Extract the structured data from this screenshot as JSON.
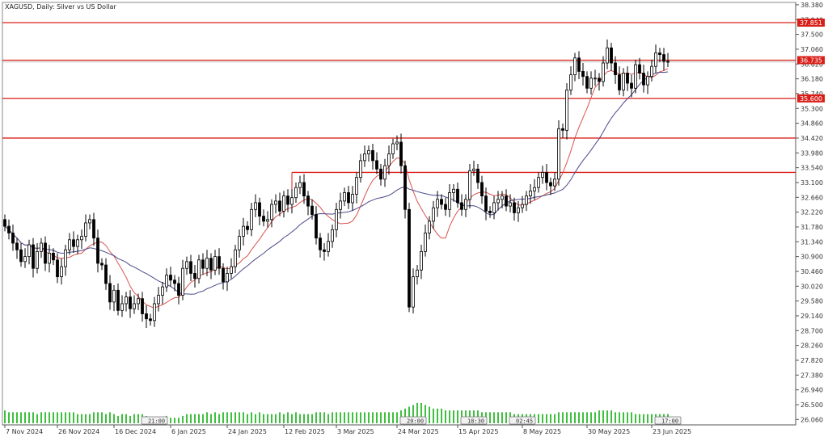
{
  "title": "XAGUSD, Daily:  Silver vs US Dollar",
  "colors": {
    "level": "#d91e18",
    "ma_fast": "#d9534f",
    "ma_slow": "#4a4a8a",
    "volume": "#3fbf3f",
    "candle": "#000000",
    "grid": "#cfcfcf"
  },
  "chart_data": {
    "type": "candlestick",
    "ylim": [
      25.9,
      38.45
    ],
    "y_ticks": [
      "38.380",
      "37.940",
      "37.500",
      "37.060",
      "36.620",
      "36.180",
      "35.740",
      "35.300",
      "34.860",
      "34.420",
      "33.980",
      "33.540",
      "33.100",
      "32.660",
      "32.220",
      "31.780",
      "31.340",
      "30.900",
      "30.460",
      "30.020",
      "29.580",
      "29.140",
      "28.700",
      "28.260",
      "27.820",
      "27.380",
      "26.940",
      "26.500",
      "26.060"
    ],
    "x_ticks": [
      {
        "label": "7 Nov 2024",
        "index": 0
      },
      {
        "label": "26 Nov 2024",
        "index": 13
      },
      {
        "label": "16 Dec 2024",
        "index": 27
      },
      {
        "label": "6 Jan 2025",
        "index": 41
      },
      {
        "label": "24 Jan 2025",
        "index": 55
      },
      {
        "label": "12 Feb 2025",
        "index": 69
      },
      {
        "label": "3 Mar 2025",
        "index": 82
      },
      {
        "label": "24 Mar 2025",
        "index": 97
      },
      {
        "label": "15 Apr 2025",
        "index": 112
      },
      {
        "label": "8 May 2025",
        "index": 128
      },
      {
        "label": "30 May 2025",
        "index": 144
      },
      {
        "label": "23 Jun 2025",
        "index": 160
      }
    ],
    "session_markers": [
      {
        "label": "21:00",
        "index": 35
      },
      {
        "label": "20:00",
        "index": 99
      },
      {
        "label": "18:30",
        "index": 114
      },
      {
        "label": "02:45",
        "index": 126
      },
      {
        "label": "17:00",
        "index": 162
      }
    ],
    "levels": [
      {
        "value": 37.85,
        "label": "37.851"
      },
      {
        "value": 36.735,
        "label": "36.735"
      },
      {
        "value": 35.6,
        "label": "35.600"
      },
      {
        "value": 34.42,
        "label": ""
      },
      {
        "value": 33.4,
        "label": ""
      }
    ],
    "current_price": 36.68,
    "close": [
      31.8,
      31.6,
      31.3,
      31.1,
      30.75,
      30.9,
      31.25,
      30.55,
      31.05,
      31.3,
      30.7,
      31.0,
      30.8,
      30.3,
      30.6,
      31.1,
      31.4,
      31.2,
      31.4,
      31.5,
      31.9,
      32.0,
      31.45,
      30.7,
      30.65,
      30.1,
      29.55,
      29.9,
      29.3,
      29.5,
      29.7,
      29.35,
      29.5,
      29.65,
      29.2,
      29.05,
      29.0,
      29.5,
      29.75,
      30.0,
      30.35,
      30.2,
      30.1,
      29.75,
      30.55,
      30.75,
      30.4,
      30.25,
      30.8,
      30.55,
      30.85,
      30.5,
      30.9,
      30.55,
      30.15,
      30.4,
      30.6,
      31.1,
      31.5,
      31.8,
      31.7,
      32.3,
      32.5,
      32.1,
      31.95,
      32.0,
      32.45,
      32.55,
      32.25,
      32.7,
      32.45,
      32.65,
      32.95,
      33.1,
      32.7,
      32.4,
      32.15,
      31.45,
      31.1,
      31.05,
      31.35,
      31.7,
      32.3,
      32.55,
      32.8,
      32.5,
      32.75,
      33.25,
      33.75,
      33.95,
      34.05,
      33.75,
      33.5,
      33.2,
      33.6,
      33.95,
      34.25,
      34.3,
      33.6,
      32.3,
      29.4,
      30.3,
      30.5,
      31.05,
      31.6,
      31.95,
      32.35,
      32.6,
      32.45,
      32.3,
      32.8,
      32.9,
      32.5,
      32.3,
      32.6,
      33.45,
      33.5,
      33.1,
      32.7,
      32.25,
      32.2,
      32.5,
      32.6,
      32.7,
      32.4,
      32.5,
      32.2,
      32.35,
      32.45,
      32.7,
      32.85,
      32.95,
      33.25,
      33.4,
      33.1,
      33.0,
      33.2,
      34.7,
      34.65,
      35.85,
      36.3,
      36.8,
      36.4,
      36.25,
      35.9,
      36.2,
      36.2,
      36.1,
      36.65,
      37.1,
      36.65,
      36.3,
      35.85,
      36.35,
      36.05,
      35.9,
      36.6,
      36.35,
      36.0,
      36.25,
      36.55,
      36.95,
      36.9,
      36.7,
      36.68
    ]
  },
  "volume": {
    "values": [
      35,
      30,
      30,
      30,
      30,
      30,
      30,
      30,
      25,
      30,
      30,
      30,
      30,
      30,
      30,
      30,
      30,
      30,
      25,
      25,
      25,
      25,
      30,
      30,
      30,
      25,
      30,
      25,
      20,
      25,
      25,
      20,
      25,
      25,
      25,
      20,
      10,
      15,
      15,
      15,
      20,
      15,
      15,
      15,
      20,
      25,
      25,
      25,
      25,
      25,
      30,
      25,
      30,
      25,
      30,
      30,
      30,
      30,
      30,
      30,
      25,
      30,
      25,
      30,
      25,
      25,
      25,
      25,
      30,
      25,
      30,
      25,
      30,
      25,
      25,
      25,
      25,
      30,
      30,
      30,
      25,
      30,
      30,
      30,
      30,
      30,
      30,
      30,
      30,
      30,
      30,
      30,
      30,
      30,
      30,
      30,
      30,
      30,
      35,
      40,
      45,
      50,
      55,
      55,
      50,
      45,
      40,
      40,
      40,
      35,
      35,
      35,
      35,
      35,
      35,
      35,
      35,
      35,
      30,
      30,
      30,
      30,
      30,
      30,
      30,
      30,
      25,
      25,
      25,
      25,
      25,
      25,
      25,
      25,
      25,
      25,
      25,
      30,
      30,
      30,
      30,
      30,
      30,
      30,
      30,
      30,
      30,
      35,
      35,
      35,
      35,
      30,
      30,
      30,
      30,
      30,
      25,
      25,
      25,
      25,
      25,
      25,
      25,
      25,
      25,
      30,
      30,
      25,
      25,
      20
    ]
  }
}
